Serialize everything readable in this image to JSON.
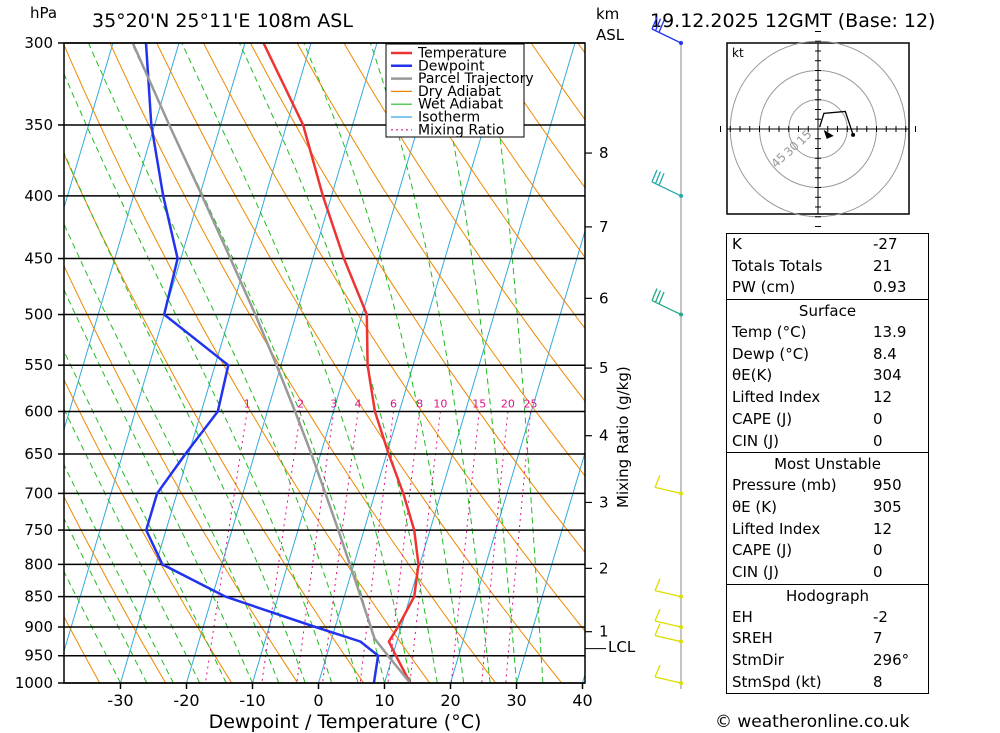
{
  "header": {
    "location": "35°20'N  25°11'E  108m  ASL",
    "datetime": "19.12.2025  12GMT  (Base: 12)",
    "pressure_unit": "hPa",
    "height_unit_1": "km",
    "height_unit_2": "ASL"
  },
  "chart_data": {
    "type": "line",
    "subtype": "skew-T log-P diagram",
    "xlabel": "Dewpoint / Temperature (°C)",
    "ylabel": "hPa",
    "x_ticks": [
      -30,
      -20,
      -10,
      0,
      10,
      20,
      30,
      40
    ],
    "pressure_levels": [
      300,
      350,
      400,
      450,
      500,
      550,
      600,
      650,
      700,
      750,
      800,
      850,
      900,
      950,
      1000
    ],
    "height_ticks_km": [
      {
        "label": "8",
        "p": 369
      },
      {
        "label": "7",
        "p": 424
      },
      {
        "label": "6",
        "p": 485
      },
      {
        "label": "5",
        "p": 553
      },
      {
        "label": "4",
        "p": 628
      },
      {
        "label": "3",
        "p": 712
      },
      {
        "label": "2",
        "p": 806
      },
      {
        "label": "1",
        "p": 908
      }
    ],
    "lcl_label": "LCL",
    "lcl_pressure": 920,
    "mixing_ratio_label": "Mixing Ratio (g/kg)",
    "mixing_ratio_values": [
      "1",
      "2",
      "3",
      "4",
      "6",
      "8",
      "10",
      "15",
      "20",
      "25"
    ],
    "legend": [
      "Temperature",
      "Dewpoint",
      "Parcel Trajectory",
      "Dry Adiabat",
      "Wet Adiabat",
      "Isotherm",
      "Mixing Ratio"
    ],
    "legend_position": "top-right",
    "series": [
      {
        "name": "Temperature",
        "color": "#ee3333",
        "points": [
          [
            1000,
            13.9
          ],
          [
            950,
            10.5
          ],
          [
            925,
            8.8
          ],
          [
            900,
            9.5
          ],
          [
            850,
            10.6
          ],
          [
            800,
            9.8
          ],
          [
            750,
            7.6
          ],
          [
            700,
            4.3
          ],
          [
            650,
            0.3
          ],
          [
            600,
            -3.7
          ],
          [
            550,
            -6.9
          ],
          [
            500,
            -9.3
          ],
          [
            450,
            -15.3
          ],
          [
            400,
            -21.3
          ],
          [
            350,
            -27.5
          ],
          [
            300,
            -37.2
          ]
        ]
      },
      {
        "name": "Dewpoint",
        "color": "#2233ee",
        "points": [
          [
            1000,
            8.4
          ],
          [
            950,
            7.8
          ],
          [
            925,
            4.5
          ],
          [
            900,
            -3.0
          ],
          [
            850,
            -18.0
          ],
          [
            800,
            -29.0
          ],
          [
            750,
            -33.0
          ],
          [
            700,
            -33.0
          ],
          [
            650,
            -30.5
          ],
          [
            600,
            -27.5
          ],
          [
            550,
            -28.0
          ],
          [
            500,
            -40.0
          ],
          [
            450,
            -40.5
          ],
          [
            400,
            -45.5
          ],
          [
            350,
            -50.5
          ],
          [
            300,
            -55.0
          ]
        ]
      },
      {
        "name": "Parcel Trajectory",
        "color": "#999999",
        "points": [
          [
            1000,
            13.9
          ],
          [
            950,
            9.3
          ],
          [
            920,
            6.5
          ],
          [
            900,
            5.4
          ],
          [
            850,
            2.5
          ],
          [
            800,
            -0.6
          ],
          [
            750,
            -3.9
          ],
          [
            700,
            -7.5
          ],
          [
            650,
            -11.4
          ],
          [
            600,
            -15.8
          ],
          [
            550,
            -20.7
          ],
          [
            500,
            -26.2
          ],
          [
            450,
            -32.5
          ],
          [
            400,
            -39.6
          ],
          [
            350,
            -47.8
          ],
          [
            300,
            -57.0
          ]
        ]
      }
    ],
    "wind_barbs": [
      {
        "p": 300,
        "color": "#2233ee"
      },
      {
        "p": 400,
        "color": "#22aaaa"
      },
      {
        "p": 500,
        "color": "#22aa88"
      },
      {
        "p": 700,
        "color": "#dddd00"
      },
      {
        "p": 850,
        "color": "#dddd00"
      },
      {
        "p": 900,
        "color": "#dddd00"
      },
      {
        "p": 925,
        "color": "#dddd00"
      },
      {
        "p": 1000,
        "color": "#dddd00"
      }
    ],
    "hodograph": {
      "unit": "kt",
      "ring_labels": [
        "15",
        "30",
        "45"
      ],
      "trace": [
        [
          0.8,
          0.9
        ],
        [
          3,
          8
        ],
        [
          14,
          9
        ],
        [
          18,
          -3
        ]
      ],
      "storm_motion": [
        1.5,
        -1.5
      ]
    }
  },
  "indices": {
    "k_label": "K",
    "k": "-27",
    "tt_label": "Totals Totals",
    "tt": "21",
    "pw_label": "PW (cm)",
    "pw": "0.93"
  },
  "surface": {
    "title": "Surface",
    "temp_label": "Temp (°C)",
    "temp": "13.9",
    "dewp_label": "Dewp (°C)",
    "dewp": "8.4",
    "thetae_label": "θE(K)",
    "thetae": "304",
    "li_label": "Lifted Index",
    "li": "12",
    "cape_label": "CAPE (J)",
    "cape": "0",
    "cin_label": "CIN (J)",
    "cin": "0"
  },
  "most_unstable": {
    "title": "Most Unstable",
    "pressure_label": "Pressure (mb)",
    "pressure": "950",
    "thetae_label": "θE (K)",
    "thetae": "305",
    "li_label": "Lifted Index",
    "li": "12",
    "cape_label": "CAPE (J)",
    "cape": "0",
    "cin_label": "CIN (J)",
    "cin": "0"
  },
  "hodo_params": {
    "title": "Hodograph",
    "eh_label": "EH",
    "eh": "-2",
    "sreh_label": "SREH",
    "sreh": "7",
    "stmdir_label": "StmDir",
    "stmdir": "296°",
    "stmspd_label": "StmSpd (kt)",
    "stmspd": "8"
  },
  "copyright": "© weatheronline.co.uk"
}
